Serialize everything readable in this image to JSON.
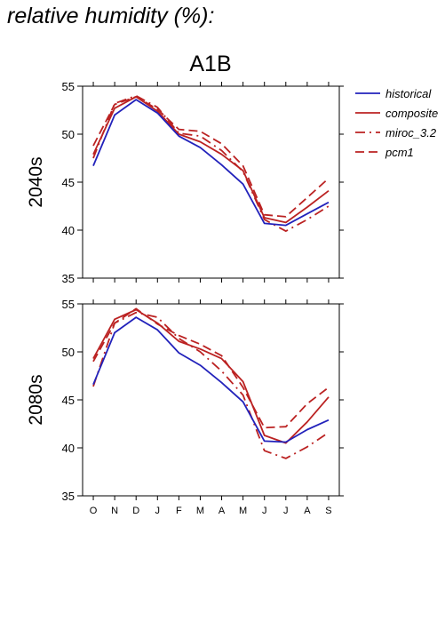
{
  "figure": {
    "title": "relative humidity (%):"
  },
  "colors": {
    "historical": "#2222bb",
    "model": "#bb2222",
    "axis": "#000000"
  },
  "chart_data": {
    "type": "line",
    "title": "A1B",
    "categories": [
      "O",
      "N",
      "D",
      "J",
      "F",
      "M",
      "A",
      "M",
      "J",
      "J",
      "A",
      "S"
    ],
    "ylim": [
      35,
      55
    ],
    "yticks": [
      35,
      40,
      45,
      50,
      55
    ],
    "grid": false,
    "legend": {
      "position": "top-right",
      "entries": [
        {
          "name": "historical",
          "style": "solid",
          "color": "#2222bb"
        },
        {
          "name": "composite",
          "style": "solid",
          "color": "#bb2222"
        },
        {
          "name": "miroc_3.2",
          "style": "dashdot",
          "color": "#bb2222"
        },
        {
          "name": "pcm1",
          "style": "dashed",
          "color": "#bb2222"
        }
      ]
    },
    "panels": [
      {
        "ylabel": "2040s",
        "series": [
          {
            "name": "historical",
            "style": "solid",
            "color": "#2222bb",
            "values": [
              46.7,
              52.0,
              53.6,
              52.2,
              49.8,
              48.6,
              46.8,
              44.8,
              40.7,
              40.5,
              41.7,
              42.9
            ]
          },
          {
            "name": "composite",
            "style": "solid",
            "color": "#bb2222",
            "values": [
              47.9,
              52.7,
              53.9,
              52.4,
              50.0,
              49.2,
              47.9,
              46.2,
              41.3,
              40.8,
              42.4,
              44.1
            ]
          },
          {
            "name": "miroc_3.2",
            "style": "dashdot",
            "color": "#bb2222",
            "values": [
              47.5,
              53.2,
              54.0,
              52.8,
              50.1,
              49.8,
              48.3,
              46.1,
              41.1,
              39.9,
              41.1,
              42.5
            ]
          },
          {
            "name": "pcm1",
            "style": "dashed",
            "color": "#bb2222",
            "values": [
              48.8,
              53.1,
              53.9,
              52.6,
              50.5,
              50.3,
              49.0,
              46.7,
              41.6,
              41.4,
              43.4,
              45.4
            ]
          }
        ]
      },
      {
        "ylabel": "2080s",
        "series": [
          {
            "name": "historical",
            "style": "solid",
            "color": "#2222bb",
            "values": [
              46.6,
              52.0,
              53.6,
              52.3,
              49.9,
              48.6,
              46.8,
              44.8,
              40.7,
              40.6,
              41.9,
              42.9
            ]
          },
          {
            "name": "composite",
            "style": "solid",
            "color": "#bb2222",
            "values": [
              49.3,
              53.4,
              54.4,
              53.0,
              51.1,
              50.3,
              49.3,
              46.9,
              41.3,
              40.5,
              42.7,
              45.3
            ]
          },
          {
            "name": "miroc_3.2",
            "style": "dashdot",
            "color": "#bb2222",
            "values": [
              46.4,
              53.0,
              54.1,
              53.6,
              51.4,
              50.0,
              48.0,
              45.5,
              39.7,
              38.9,
              40.1,
              41.6
            ]
          },
          {
            "name": "pcm1",
            "style": "dashed",
            "color": "#bb2222",
            "values": [
              49.0,
              53.0,
              54.5,
              52.9,
              51.7,
              50.8,
              49.6,
              46.3,
              42.1,
              42.2,
              44.6,
              46.3
            ]
          }
        ]
      }
    ]
  }
}
